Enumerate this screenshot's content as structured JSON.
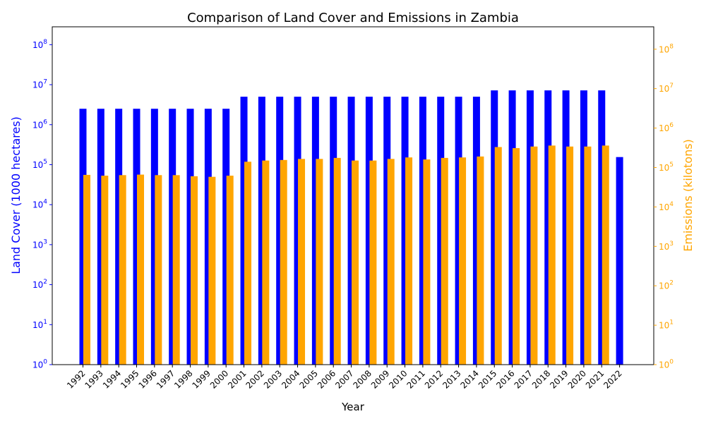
{
  "chart_data": {
    "type": "bar",
    "title": "Comparison of Land Cover and Emissions in Zambia",
    "xlabel": "Year",
    "ylabel_left": "Land Cover (1000 hectares)",
    "ylabel_right": "Emissions (kilotons)",
    "yscale": "log",
    "ylim_left": [
      1,
      280000000
    ],
    "ylim_right": [
      1,
      370000000
    ],
    "categories": [
      "1992",
      "1993",
      "1994",
      "1995",
      "1996",
      "1997",
      "1998",
      "1999",
      "2000",
      "2001",
      "2002",
      "2003",
      "2004",
      "2005",
      "2006",
      "2007",
      "2008",
      "2009",
      "2010",
      "2011",
      "2012",
      "2013",
      "2014",
      "2015",
      "2016",
      "2017",
      "2018",
      "2019",
      "2020",
      "2021",
      "2022"
    ],
    "series": [
      {
        "name": "",
        "axis": "left",
        "color": "#0000ff",
        "values": [
          2500000,
          2500000,
          2500000,
          2500000,
          2500000,
          2500000,
          2500000,
          2500000,
          2500000,
          5000000,
          5000000,
          5000000,
          5000000,
          5000000,
          5000000,
          5000000,
          5000000,
          5000000,
          5000000,
          5000000,
          5000000,
          5000000,
          5000000,
          7200000,
          7200000,
          7200000,
          7200000,
          7200000,
          7200000,
          7200000,
          155000
        ]
      },
      {
        "name": "",
        "axis": "right",
        "color": "#ffa500",
        "values": [
          65000,
          62000,
          64000,
          66000,
          64000,
          64000,
          60000,
          58000,
          62000,
          140000,
          150000,
          155000,
          165000,
          165000,
          175000,
          150000,
          150000,
          165000,
          180000,
          160000,
          175000,
          180000,
          190000,
          330000,
          310000,
          340000,
          360000,
          340000,
          340000,
          360000,
          null
        ]
      }
    ],
    "left_ticks": [
      "10^0",
      "10^1",
      "10^2",
      "10^3",
      "10^4",
      "10^5",
      "10^6",
      "10^7",
      "10^8"
    ],
    "right_ticks": [
      "10^0",
      "10^1",
      "10^2",
      "10^3",
      "10^4",
      "10^5",
      "10^6",
      "10^7",
      "10^8"
    ],
    "grid": false,
    "legend": "none"
  }
}
